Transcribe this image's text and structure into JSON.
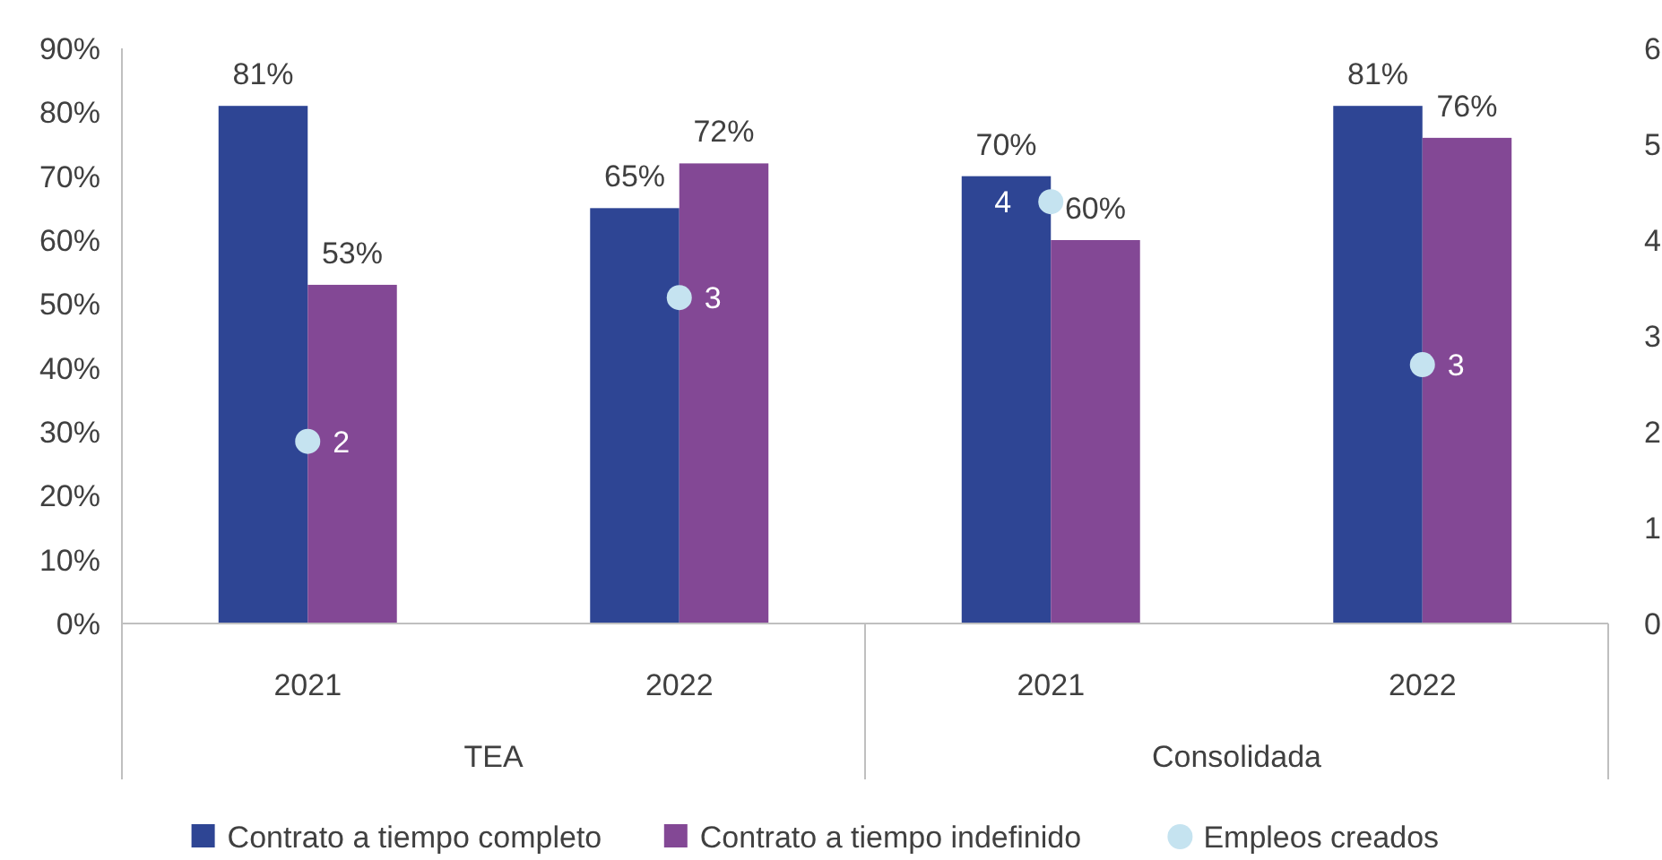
{
  "chart_data": {
    "type": "bar",
    "categories": [
      "2021",
      "2022",
      "2021",
      "2022"
    ],
    "annotations": [
      "TEA",
      "Consolidada"
    ],
    "series": [
      {
        "name": "Contrato a tiempo completo",
        "color": "#2e4594",
        "values": [
          81,
          65,
          70,
          81
        ],
        "value_labels": [
          "81%",
          "65%",
          "70%",
          "81%"
        ]
      },
      {
        "name": "Contrato a tiempo indefinido",
        "color": "#834895",
        "values": [
          53,
          72,
          60,
          76
        ],
        "value_labels": [
          "53%",
          "72%",
          "60%",
          "76%"
        ]
      },
      {
        "name": "Empleos creados",
        "type": "scatter",
        "axis": "y2",
        "color": "#c5e3f0",
        "values": [
          1.9,
          3.4,
          4.4,
          2.7
        ],
        "value_labels": [
          "2",
          "3",
          "4",
          "3"
        ]
      }
    ],
    "ylim": [
      0,
      90
    ],
    "yticks": [
      {
        "value": 0,
        "label": "0%"
      },
      {
        "value": 10,
        "label": "10%"
      },
      {
        "value": 20,
        "label": "20%"
      },
      {
        "value": 30,
        "label": "30%"
      },
      {
        "value": 40,
        "label": "40%"
      },
      {
        "value": 50,
        "label": "50%"
      },
      {
        "value": 60,
        "label": "60%"
      },
      {
        "value": 70,
        "label": "70%"
      },
      {
        "value": 80,
        "label": "80%"
      },
      {
        "value": 90,
        "label": "90%"
      }
    ],
    "y2lim": [
      0,
      6
    ],
    "y2ticks": [
      0,
      1,
      2,
      3,
      4,
      5,
      6
    ],
    "legend": "bottom",
    "marker": "circle",
    "grid": false
  }
}
